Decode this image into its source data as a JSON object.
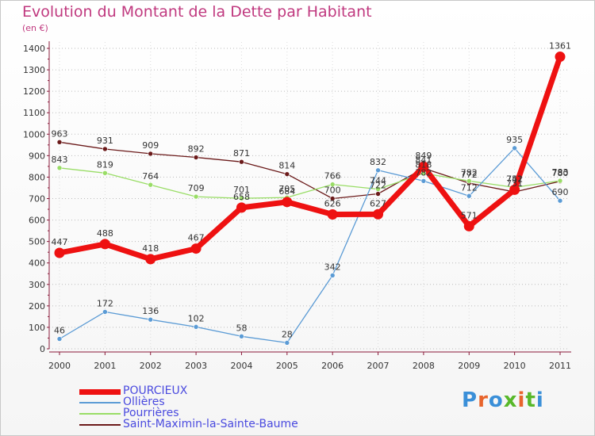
{
  "title": "Evolution du Montant de la Dette par Habitant",
  "unit": "(en €)",
  "logo": {
    "text": "Proxiti",
    "letter_colors": [
      "#3a8fd8",
      "#e8642c",
      "#3a8fd8",
      "#58b82a",
      "#e8642c",
      "#58b82a",
      "#3a8fd8"
    ]
  },
  "chart_data": {
    "type": "line",
    "title": "Evolution du Montant de la Dette par Habitant",
    "ylabel": "(en €)",
    "xlabel": "",
    "x": [
      "2000",
      "2001",
      "2002",
      "2003",
      "2004",
      "2005",
      "2006",
      "2007",
      "2008",
      "2009",
      "2010",
      "2011"
    ],
    "ylim": [
      0,
      1400
    ],
    "yticks": [
      0,
      100,
      200,
      300,
      400,
      500,
      600,
      700,
      800,
      900,
      1000,
      1100,
      1200,
      1300,
      1400
    ],
    "grid": "horizontal dotted",
    "legend_position": "bottom-left",
    "series": [
      {
        "name": "Saint-Maximin-la-Sainte-Baume",
        "color": "#6b1a1a",
        "values": [
          963,
          931,
          909,
          892,
          871,
          814,
          700,
          722,
          841,
          772,
          731,
          780
        ]
      },
      {
        "name": "Pourrières",
        "color": "#99dd66",
        "values": [
          843,
          819,
          764,
          709,
          701,
          705,
          766,
          744,
          818,
          782,
          752,
          783
        ]
      },
      {
        "name": "Ollières",
        "color": "#5b9bd5",
        "values": [
          46,
          172,
          136,
          102,
          58,
          28,
          342,
          832,
          782,
          712,
          935,
          690
        ]
      },
      {
        "name": "POURCIEUX",
        "color": "#ee1111",
        "values": [
          447,
          488,
          418,
          467,
          658,
          684,
          626,
          627,
          849,
          571,
          741,
          1361
        ]
      }
    ],
    "legend_order": [
      "POURCIEUX",
      "Ollières",
      "Pourrières",
      "Saint-Maximin-la-Sainte-Baume"
    ]
  }
}
